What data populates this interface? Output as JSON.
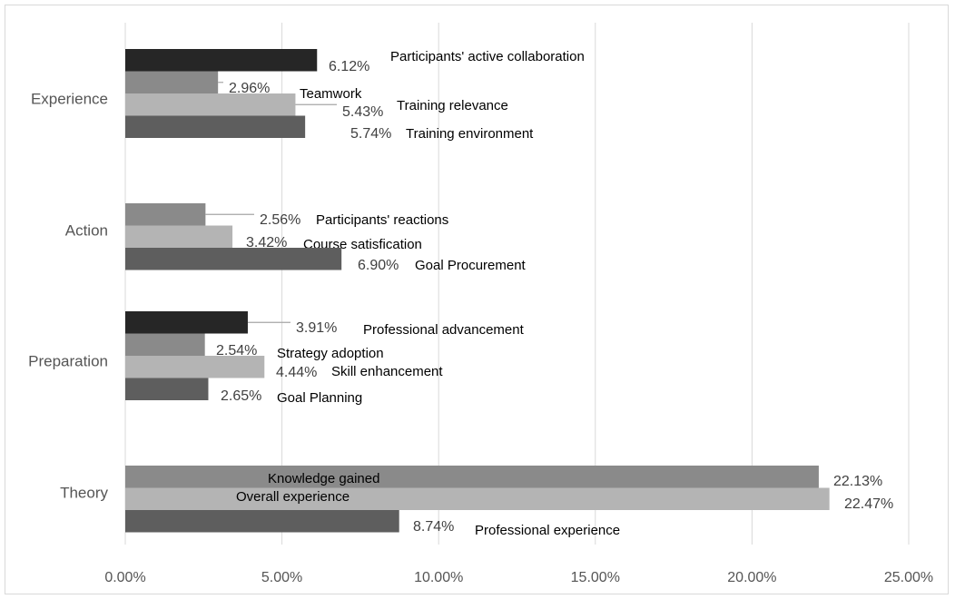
{
  "chart_data": {
    "type": "bar",
    "orientation": "horizontal",
    "title": "",
    "xlabel": "",
    "ylabel": "",
    "xlim": [
      0,
      25
    ],
    "x_ticks": [
      "0.00%",
      "5.00%",
      "10.00%",
      "15.00%",
      "20.00%",
      "25.00%"
    ],
    "grid": "vertical",
    "legend": "none",
    "colors": {
      "black": "#262626",
      "mid_gray": "#8a8a8a",
      "light_gray": "#b4b4b4",
      "dark_gray": "#5e5e5e",
      "grid": "#d9d9d9",
      "leader": "#a6a6a6"
    },
    "groups": [
      {
        "category": "Experience",
        "bars": [
          {
            "name": "Participants' active collaboration",
            "value": 6.12,
            "value_label": "6.12%",
            "color": "black"
          },
          {
            "name": "Teamwork",
            "value": 2.96,
            "value_label": "2.96%",
            "color": "mid_gray"
          },
          {
            "name": "Training relevance",
            "value": 5.43,
            "value_label": "5.43%",
            "color": "light_gray"
          },
          {
            "name": "Training environment",
            "value": 5.74,
            "value_label": "5.74%",
            "color": "dark_gray"
          }
        ]
      },
      {
        "category": "Action",
        "bars": [
          {
            "name": "Participants' reactions",
            "value": 2.56,
            "value_label": "2.56%",
            "color": "mid_gray"
          },
          {
            "name": "Course satisfication",
            "value": 3.42,
            "value_label": "3.42%",
            "color": "light_gray"
          },
          {
            "name": "Goal Procurement",
            "value": 6.9,
            "value_label": "6.90%",
            "color": "dark_gray"
          }
        ]
      },
      {
        "category": "Preparation",
        "bars": [
          {
            "name": "Professional advancement",
            "value": 3.91,
            "value_label": "3.91%",
            "color": "black"
          },
          {
            "name": "Strategy adoption",
            "value": 2.54,
            "value_label": "2.54%",
            "color": "mid_gray"
          },
          {
            "name": "Skill enhancement",
            "value": 4.44,
            "value_label": "4.44%",
            "color": "light_gray"
          },
          {
            "name": "Goal Planning",
            "value": 2.65,
            "value_label": "2.65%",
            "color": "dark_gray"
          }
        ]
      },
      {
        "category": "Theory",
        "bars": [
          {
            "name": "Knowledge gained",
            "value": 22.13,
            "value_label": "22.13%",
            "color": "mid_gray"
          },
          {
            "name": "Overall experience",
            "value": 22.47,
            "value_label": "22.47%",
            "color": "light_gray"
          },
          {
            "name": "Professional experience",
            "value": 8.74,
            "value_label": "8.74%",
            "color": "dark_gray"
          }
        ]
      }
    ]
  }
}
